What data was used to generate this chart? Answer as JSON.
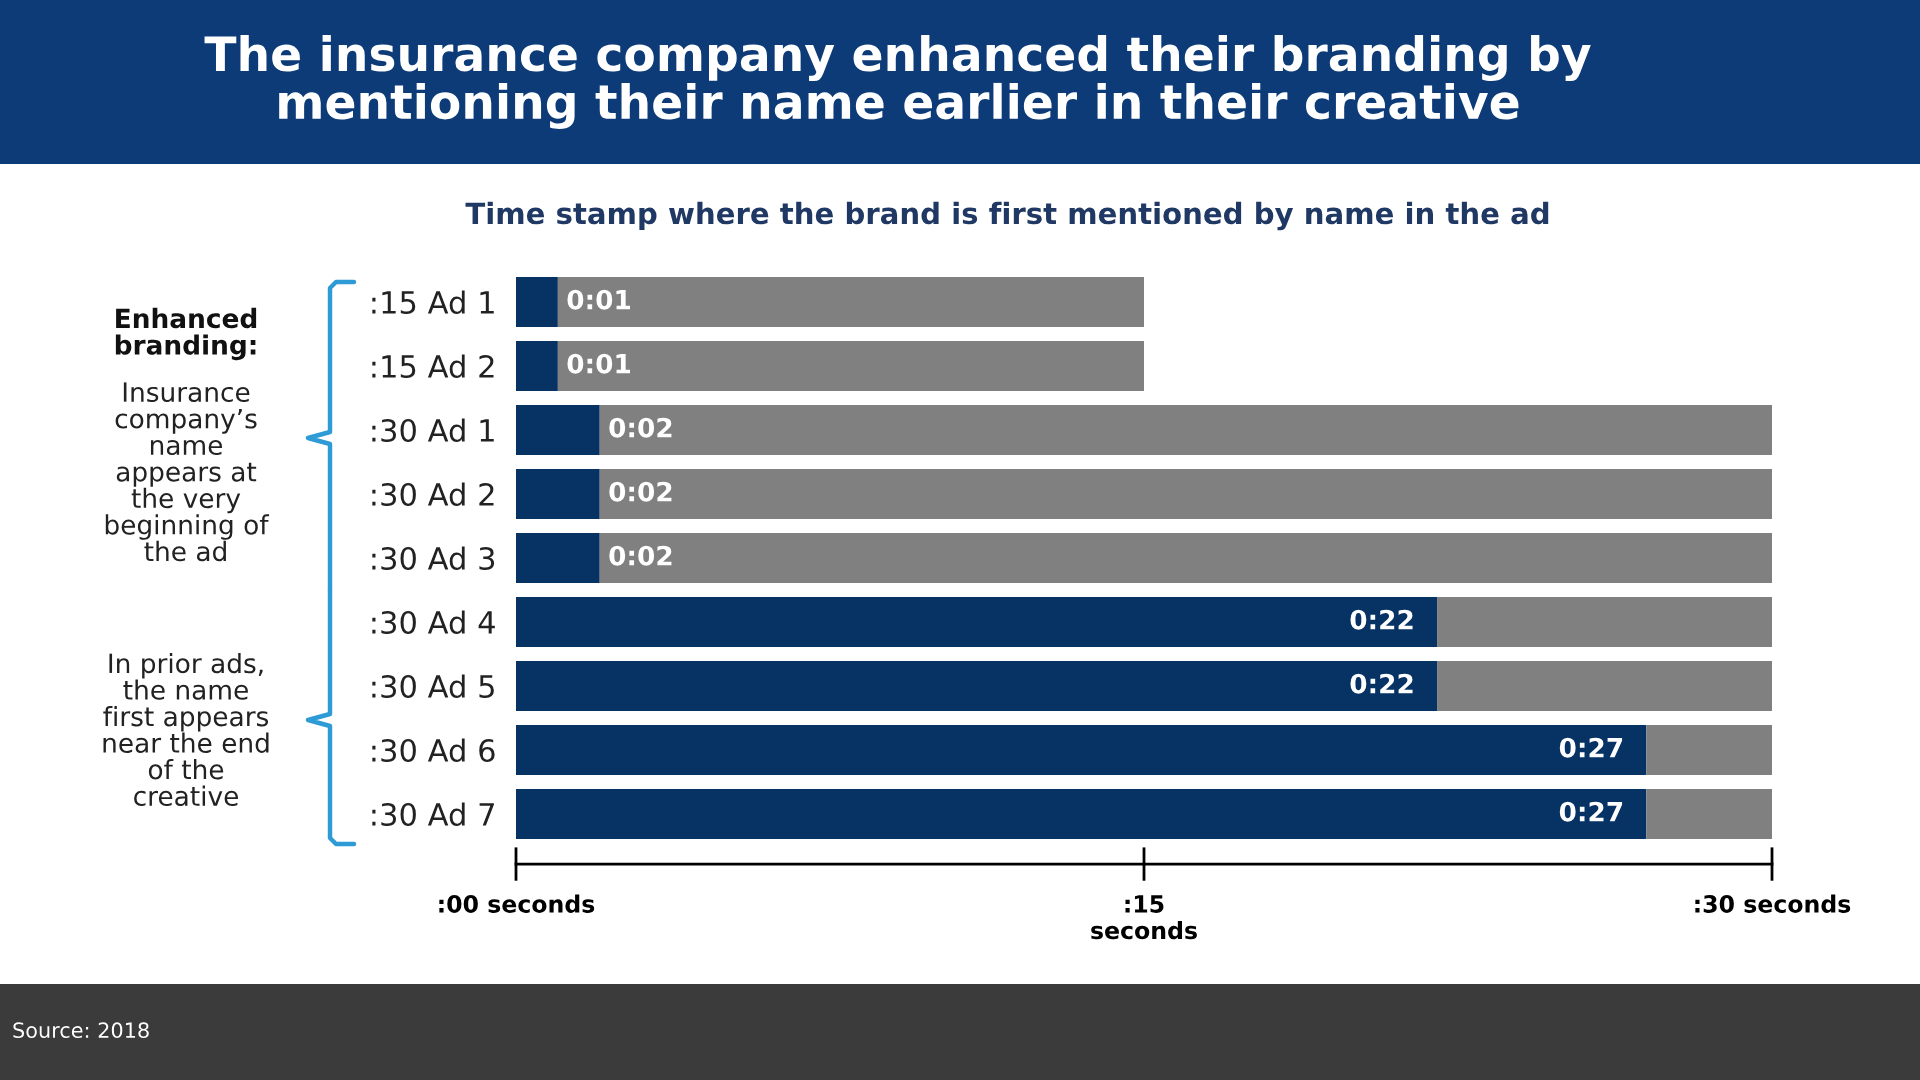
{
  "chart_data": {
    "type": "bar",
    "orientation": "horizontal",
    "stacked": true,
    "title": "The insurance company enhanced their branding by\nmentioning their name earlier in their creative",
    "subtitle": "Time stamp where the brand is first mentioned by name in the ad",
    "categories": [
      ":15 Ad 1",
      ":15 Ad 2",
      ":30 Ad 1",
      ":30 Ad 2",
      ":30 Ad 3",
      ":30 Ad 4",
      ":30 Ad 5",
      ":30 Ad 6",
      ":30 Ad 7"
    ],
    "series": [
      {
        "color": "#063264",
        "values": [
          1,
          1,
          2,
          2,
          2,
          22,
          22,
          27,
          27
        ],
        "value_labels": [
          "0:01",
          "0:01",
          "0:02",
          "0:02",
          "0:02",
          "0:22",
          "0:22",
          "0:27",
          "0:27"
        ]
      },
      {
        "color": "#808080",
        "values": [
          14,
          14,
          28,
          28,
          28,
          8,
          8,
          3,
          3
        ]
      }
    ],
    "xlim": [
      0,
      30
    ],
    "xticks": [
      {
        "value": 0,
        "label": ":00 seconds"
      },
      {
        "value": 15,
        "label": ":15\nseconds"
      },
      {
        "value": 30,
        "label": ":30 seconds"
      }
    ],
    "annotations": [
      "Enhanced\nbranding:",
      "Insurance\ncompany’s\nname\nappears at\nthe very\nbeginning of\nthe ad",
      "In prior ads,\nthe name\nfirst appears\nnear the end\nof the\ncreative",
      "Source: 2018"
    ]
  }
}
